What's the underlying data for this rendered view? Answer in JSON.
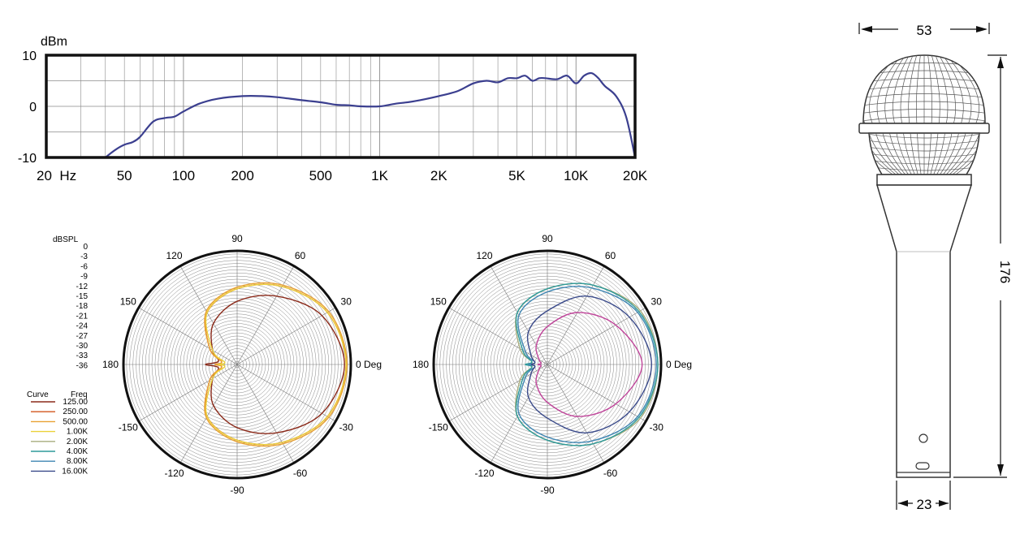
{
  "chart_data": [
    {
      "type": "line",
      "ylabel": "dBm",
      "y_ticks": [
        "10",
        "0",
        "-10"
      ],
      "x_ticks": [
        "20  Hz",
        "50",
        "100",
        "200",
        "500",
        "1K",
        "2K",
        "5K",
        "10K",
        "20K"
      ],
      "x_tick_values": [
        20,
        50,
        100,
        200,
        500,
        1000,
        2000,
        5000,
        10000,
        20000
      ],
      "xscale": "log",
      "xlim": [
        20,
        20000
      ],
      "ylim": [
        -10,
        10
      ],
      "grid": true,
      "series": [
        {
          "color": "#3b3f8f",
          "x": [
            40,
            45,
            50,
            55,
            60,
            70,
            80,
            90,
            100,
            120,
            150,
            200,
            250,
            300,
            400,
            500,
            600,
            700,
            800,
            1000,
            1200,
            1500,
            2000,
            2500,
            3000,
            3500,
            4000,
            4500,
            5000,
            5500,
            6000,
            6500,
            7000,
            8000,
            9000,
            10000,
            11000,
            12000,
            13000,
            14000,
            16000,
            18000,
            20000
          ],
          "y": [
            -10,
            -8.5,
            -7.5,
            -7,
            -6,
            -3,
            -2.3,
            -2,
            -1,
            0.5,
            1.5,
            2,
            2,
            1.8,
            1.2,
            0.8,
            0.3,
            0.2,
            0,
            0,
            0.5,
            1,
            2,
            3,
            4.5,
            5,
            4.7,
            5.5,
            5.5,
            6,
            5,
            5.5,
            5.5,
            5.3,
            6,
            4.5,
            6,
            6.5,
            5.5,
            4,
            2,
            -2,
            -10
          ]
        }
      ]
    },
    {
      "type": "polar",
      "r_label": "dBSPL",
      "r_ticks": [
        "0",
        "-3",
        "-6",
        "-9",
        "-12",
        "-15",
        "-18",
        "-21",
        "-24",
        "-27",
        "-30",
        "-33",
        "-36"
      ],
      "rlim": [
        -36,
        0
      ],
      "angle_labels": [
        "90",
        "60",
        "30",
        "0 Deg",
        "-30",
        "-60",
        "-90",
        "-120",
        "-150",
        "180",
        "150",
        "120"
      ],
      "angle_values": [
        90,
        60,
        30,
        0,
        -30,
        -60,
        -90,
        -120,
        -150,
        180,
        150,
        120
      ],
      "legend": {
        "header_curve": "Curve",
        "header_freq": "Freq",
        "entries": [
          {
            "freq": "125.00",
            "color": "#8b2a1a"
          },
          {
            "freq": "250.00",
            "color": "#d2541c"
          },
          {
            "freq": "500.00",
            "color": "#e8a133"
          },
          {
            "freq": "1.00K",
            "color": "#ecd13a"
          },
          {
            "freq": "2.00K",
            "color": "#a8ad7e"
          },
          {
            "freq": "4.00K",
            "color": "#2e9a9a"
          },
          {
            "freq": "8.00K",
            "color": "#3f86b3"
          },
          {
            "freq": "16.00K",
            "color": "#3a4a8a"
          }
        ]
      },
      "series": [
        {
          "freq": "125.00",
          "color": "#8b2a1a",
          "angle": [
            0,
            30,
            60,
            90,
            120,
            150,
            170,
            180
          ],
          "value": [
            -2,
            -5,
            -11,
            -16,
            -21,
            -27,
            -30,
            -26
          ]
        },
        {
          "freq": "250.00",
          "color": "#d2541c",
          "angle": [
            0,
            30,
            60,
            90,
            120,
            150,
            170,
            180
          ],
          "value": [
            -1.5,
            -3,
            -7.5,
            -12,
            -17,
            -26,
            -31,
            -29
          ]
        },
        {
          "freq": "500.00",
          "color": "#e8a133",
          "angle": [
            0,
            30,
            60,
            90,
            120,
            150,
            170,
            180
          ],
          "value": [
            -1.2,
            -2.5,
            -7,
            -11.5,
            -16.5,
            -26,
            -31,
            -29
          ]
        },
        {
          "freq": "1.00K",
          "color": "#ecd13a",
          "angle": [
            0,
            30,
            60,
            90,
            120,
            150,
            170,
            180
          ],
          "value": [
            -1.5,
            -3,
            -7.5,
            -12,
            -17,
            -27,
            -32,
            -30
          ]
        }
      ]
    },
    {
      "type": "polar",
      "rlim": [
        -36,
        0
      ],
      "angle_labels": [
        "90",
        "60",
        "30",
        "0 Deg",
        "-30",
        "-60",
        "-90",
        "-120",
        "-150",
        "180",
        "150",
        "120"
      ],
      "angle_values": [
        90,
        60,
        30,
        0,
        -30,
        -60,
        -90,
        -120,
        -150,
        180,
        150,
        120
      ],
      "series": [
        {
          "freq": "2.00K",
          "color": "#a8ad7e",
          "angle": [
            0,
            30,
            60,
            90,
            120,
            150,
            170,
            180
          ],
          "value": [
            -1,
            -2,
            -7,
            -12,
            -17,
            -26,
            -31,
            -30
          ]
        },
        {
          "freq": "4.00K",
          "color": "#2e9a9a",
          "angle": [
            0,
            30,
            60,
            90,
            120,
            150,
            170,
            180
          ],
          "value": [
            -1,
            -2.5,
            -7,
            -12,
            -17,
            -27,
            -31,
            -29
          ]
        },
        {
          "freq": "8.00K",
          "color": "#3f86b3",
          "angle": [
            0,
            30,
            60,
            90,
            120,
            150,
            170,
            180
          ],
          "value": [
            -1.5,
            -3,
            -8,
            -13,
            -18,
            -28,
            -32,
            -30
          ]
        },
        {
          "freq": "16.00K",
          "color": "#3a4a8a",
          "angle": [
            0,
            30,
            60,
            90,
            120,
            150,
            170,
            180
          ],
          "value": [
            -3,
            -6,
            -11,
            -19,
            -24,
            -30,
            -32,
            -31
          ]
        },
        {
          "freq": "",
          "color": "#c0449a",
          "angle": [
            0,
            30,
            60,
            90,
            120,
            150,
            170,
            180
          ],
          "value": [
            -6,
            -11,
            -17,
            -24,
            -29,
            -33,
            -34,
            -33
          ]
        }
      ]
    }
  ],
  "dimensions": {
    "width_top": "53",
    "height": "176",
    "width_bottom": "23"
  }
}
